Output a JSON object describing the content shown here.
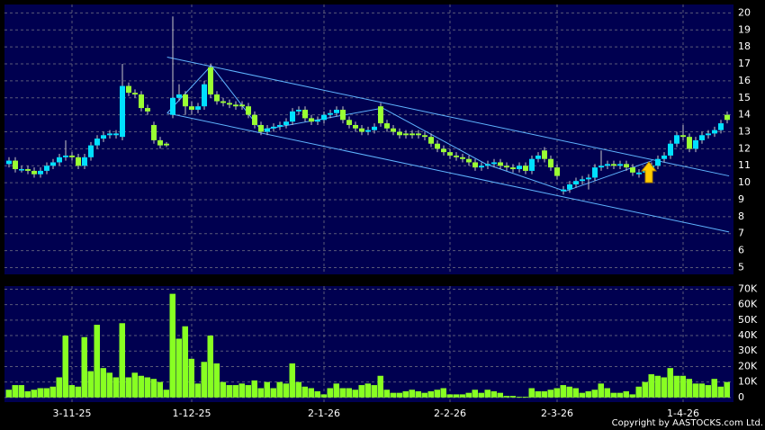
{
  "chart_data": {
    "type": "candlestick",
    "categories": [
      null,
      null,
      null,
      null,
      null,
      null,
      null,
      null,
      null,
      null,
      "3-11-25",
      null,
      null,
      null,
      null,
      null,
      null,
      null,
      null,
      null,
      null,
      null,
      null,
      null,
      null,
      null,
      null,
      null,
      null,
      "1-12-25",
      null,
      null,
      null,
      null,
      null,
      null,
      null,
      null,
      null,
      null,
      null,
      null,
      null,
      null,
      null,
      null,
      null,
      null,
      null,
      null,
      "2-1-26",
      null,
      null,
      null,
      null,
      null,
      null,
      null,
      null,
      null,
      null,
      null,
      null,
      null,
      null,
      null,
      null,
      null,
      null,
      null,
      "2-2-26",
      null,
      null,
      null,
      null,
      null,
      null,
      null,
      null,
      null,
      null,
      null,
      null,
      null,
      null,
      null,
      null,
      "2-3-26",
      null,
      null,
      null,
      null,
      null,
      null,
      null,
      null,
      null,
      null,
      null,
      null,
      null,
      null,
      null,
      null,
      null,
      null,
      null,
      "1-4-26",
      null,
      null,
      null,
      null,
      null,
      null,
      null
    ],
    "open": [
      11.1,
      11.3,
      10.8,
      10.8,
      10.7,
      10.5,
      10.7,
      11.0,
      11.2,
      11.5,
      11.6,
      11.5,
      11.0,
      11.5,
      12.2,
      12.6,
      12.8,
      12.8,
      12.7,
      15.7,
      15.3,
      15.2,
      14.4,
      13.4,
      12.5,
      12.3,
      14.0,
      15.0,
      15.2,
      14.5,
      14.3,
      14.5,
      16.8,
      15.2,
      14.8,
      14.7,
      14.6,
      14.6,
      14.5,
      14.0,
      13.4,
      13.0,
      13.2,
      13.3,
      13.4,
      13.6,
      14.2,
      14.3,
      13.8,
      13.6,
      13.7,
      14.0,
      14.1,
      14.3,
      13.7,
      13.4,
      13.2,
      13.0,
      13.1,
      14.5,
      13.5,
      13.2,
      13.0,
      12.9,
      12.9,
      12.9,
      12.8,
      12.7,
      12.3,
      12.0,
      11.8,
      11.6,
      11.5,
      11.4,
      11.2,
      10.9,
      11.0,
      11.1,
      11.2,
      11.0,
      10.9,
      10.8,
      11.0,
      10.7,
      11.4,
      11.9,
      11.4,
      10.9,
      9.5,
      9.6,
      9.9,
      10.1,
      10.2,
      10.3,
      10.9,
      11.0,
      11.1,
      11.0,
      11.1,
      10.9,
      10.5,
      10.6,
      10.7,
      11.0,
      11.4,
      11.6,
      12.3,
      12.8,
      12.7,
      12.0,
      12.5,
      12.8,
      12.9,
      13.1,
      14.0
    ],
    "high": [
      11.5,
      11.5,
      11.0,
      11.0,
      10.9,
      10.9,
      11.2,
      11.4,
      11.7,
      12.5,
      11.8,
      11.7,
      11.7,
      12.4,
      12.8,
      13.0,
      13.1,
      13.1,
      17.0,
      15.9,
      15.5,
      15.4,
      14.6,
      13.6,
      12.7,
      12.4,
      19.8,
      15.8,
      15.4,
      14.8,
      14.7,
      16.0,
      17.0,
      15.4,
      15.0,
      14.9,
      14.8,
      14.8,
      14.7,
      14.2,
      13.6,
      13.4,
      13.5,
      13.6,
      13.8,
      14.4,
      14.5,
      14.5,
      14.0,
      13.9,
      14.2,
      14.3,
      14.5,
      14.5,
      13.9,
      13.6,
      13.4,
      13.3,
      13.5,
      14.7,
      13.7,
      13.4,
      13.2,
      13.1,
      13.1,
      13.1,
      13.0,
      12.9,
      12.5,
      12.2,
      12.0,
      11.8,
      11.7,
      11.6,
      11.4,
      11.2,
      11.3,
      11.4,
      11.4,
      11.2,
      11.1,
      11.2,
      11.2,
      11.6,
      11.8,
      12.1,
      11.6,
      11.1,
      9.8,
      10.1,
      10.3,
      10.4,
      10.5,
      11.1,
      11.9,
      11.3,
      11.3,
      11.3,
      11.3,
      11.1,
      10.8,
      10.9,
      11.2,
      11.6,
      11.8,
      12.5,
      13.0,
      13.4,
      12.9,
      12.7,
      13.0,
      13.1,
      13.3,
      13.7,
      14.2
    ],
    "low": [
      10.9,
      10.6,
      10.6,
      10.5,
      10.3,
      10.3,
      10.5,
      10.8,
      11.0,
      11.3,
      11.3,
      10.8,
      10.8,
      11.3,
      12.0,
      12.4,
      12.6,
      12.6,
      12.5,
      15.1,
      15.0,
      14.2,
      14.0,
      12.3,
      12.0,
      12.1,
      13.8,
      14.8,
      14.0,
      14.0,
      14.1,
      14.3,
      15.0,
      14.6,
      14.5,
      14.4,
      14.3,
      14.3,
      13.8,
      13.2,
      12.8,
      12.8,
      13.0,
      13.1,
      13.2,
      13.4,
      14.0,
      13.6,
      13.4,
      13.4,
      13.5,
      13.8,
      13.9,
      13.5,
      13.2,
      13.0,
      12.8,
      12.8,
      12.9,
      13.3,
      13.0,
      12.8,
      12.6,
      12.6,
      12.6,
      12.6,
      12.5,
      12.1,
      11.8,
      11.6,
      11.4,
      11.3,
      11.2,
      11.0,
      10.7,
      10.7,
      10.8,
      10.9,
      10.8,
      10.7,
      10.6,
      10.6,
      10.5,
      10.5,
      11.2,
      11.2,
      10.7,
      10.2,
      9.3,
      9.4,
      9.7,
      9.9,
      9.6,
      10.1,
      10.7,
      10.8,
      10.8,
      10.8,
      10.7,
      10.4,
      10.3,
      10.4,
      10.5,
      10.8,
      11.2,
      11.4,
      12.1,
      12.5,
      11.8,
      11.8,
      12.3,
      12.6,
      12.7,
      12.9,
      13.5
    ],
    "close": [
      11.3,
      10.8,
      10.8,
      10.7,
      10.5,
      10.7,
      11.0,
      11.2,
      11.5,
      11.6,
      11.5,
      11.0,
      11.5,
      12.2,
      12.6,
      12.8,
      12.9,
      12.9,
      15.7,
      15.3,
      15.2,
      14.4,
      14.2,
      12.5,
      12.2,
      12.2,
      15.0,
      15.2,
      14.5,
      14.3,
      14.5,
      15.8,
      15.2,
      14.8,
      14.7,
      14.6,
      14.5,
      14.5,
      14.0,
      13.4,
      13.0,
      13.2,
      13.3,
      13.4,
      13.6,
      14.2,
      14.3,
      13.8,
      13.6,
      13.7,
      14.0,
      14.1,
      14.3,
      13.7,
      13.4,
      13.2,
      13.0,
      13.1,
      13.3,
      13.5,
      13.2,
      13.0,
      12.8,
      12.8,
      12.8,
      12.8,
      12.7,
      12.3,
      12.0,
      11.8,
      11.6,
      11.5,
      11.4,
      11.2,
      10.9,
      11.0,
      11.1,
      11.2,
      11.0,
      10.9,
      10.8,
      11.0,
      10.7,
      11.4,
      11.6,
      11.4,
      10.9,
      10.4,
      9.6,
      9.9,
      10.1,
      10.2,
      10.3,
      10.9,
      11.0,
      11.1,
      11.0,
      11.1,
      10.9,
      10.6,
      10.6,
      10.7,
      11.0,
      11.4,
      11.6,
      12.3,
      12.8,
      12.7,
      12.0,
      12.5,
      12.8,
      12.9,
      13.1,
      13.5,
      13.7
    ],
    "up_color": "#00e0ff",
    "down_color": "#99ff33",
    "ylim": [
      4.6,
      20.5
    ],
    "yticks": [
      5,
      6,
      7,
      8,
      9,
      10,
      11,
      12,
      13,
      14,
      15,
      16,
      17,
      18,
      19,
      20
    ],
    "grid": true,
    "trendline_color": "#5fb4ff",
    "trendlines": [
      {
        "x": [
          25.1,
          114.3
        ],
        "y": [
          17.4,
          10.4
        ]
      },
      {
        "x": [
          25.1,
          114.3
        ],
        "y": [
          14.1,
          7.1
        ]
      },
      {
        "x": [
          25.1,
          32.1,
          40,
          59.3,
          75.7,
          88.3,
          102.1
        ],
        "y": [
          14.1,
          16.9,
          13.1,
          14.4,
          11.1,
          9.5,
          11.3
        ]
      }
    ],
    "volume": {
      "type": "bar",
      "color": "#88ff22",
      "values": [
        5,
        8,
        8,
        4,
        5,
        6,
        6,
        7,
        13,
        40,
        8,
        7,
        39,
        17,
        47,
        19,
        16,
        13,
        48,
        13,
        16,
        14,
        13,
        12,
        10,
        5,
        67,
        38,
        46,
        25,
        9,
        23,
        40,
        22,
        10,
        8,
        8,
        9,
        8,
        11,
        6,
        10,
        6,
        10,
        9,
        22,
        10,
        7,
        6,
        4,
        2,
        6,
        9,
        6,
        6,
        5,
        8,
        9,
        8,
        14,
        5,
        3,
        3,
        4,
        5,
        4,
        3,
        4,
        5,
        6,
        2,
        2,
        2,
        3,
        5,
        3,
        5,
        4,
        3,
        1,
        1,
        0.5,
        0.5,
        6,
        4,
        4,
        5,
        6,
        8,
        7,
        6,
        3,
        4,
        5,
        9,
        6,
        3,
        3,
        4,
        2,
        7,
        10,
        15,
        14,
        13,
        19,
        14,
        14,
        12,
        9,
        9,
        8,
        12,
        7,
        10
      ],
      "ylim": [
        -3,
        72
      ],
      "yticks": [
        0,
        {
          "value": 10,
          "label": "10K"
        },
        {
          "value": 20,
          "label": "20K"
        },
        {
          "value": 30,
          "label": "30K"
        },
        {
          "value": 40,
          "label": "40K"
        },
        {
          "value": 50,
          "label": "50K"
        },
        {
          "value": 60,
          "label": "60K"
        },
        {
          "value": 70,
          "label": "70K"
        }
      ]
    }
  },
  "footer": "Copyright by AASTOCKS.com Ltd."
}
